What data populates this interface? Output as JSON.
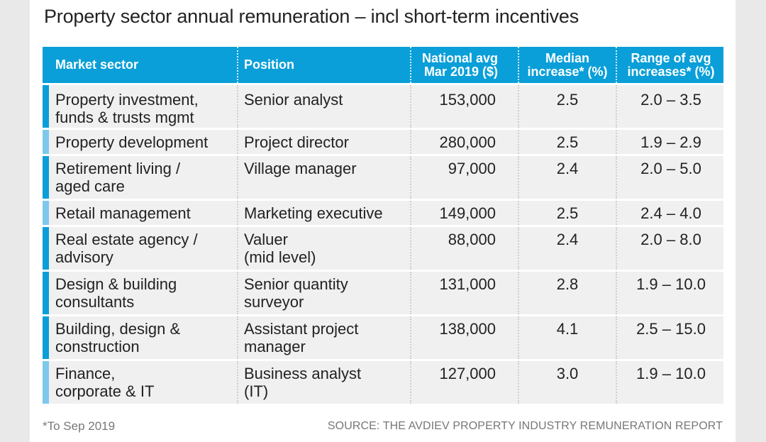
{
  "title": "Property sector annual remuneration – incl short-term incentives",
  "header": {
    "sector": "Market sector",
    "position": "Position",
    "avg_line1": "National avg",
    "avg_line2": "Mar 2019 ($)",
    "median_line1": "Median",
    "median_line2": "increase* (%)",
    "range_line1": "Range of avg",
    "range_line2": "increases* (%)"
  },
  "rows": [
    {
      "sector1": "Property investment,",
      "sector2": "funds & trusts mgmt",
      "pos1": "Senior analyst",
      "pos2": "",
      "avg": "153,000",
      "median": "2.5",
      "range": "2.0 – 3.5"
    },
    {
      "sector1": "Property development",
      "sector2": "",
      "pos1": "Project director",
      "pos2": "",
      "avg": "280,000",
      "median": "2.5",
      "range": "1.9 – 2.9"
    },
    {
      "sector1": "Retirement living /",
      "sector2": "aged care",
      "pos1": "Village manager",
      "pos2": "",
      "avg": "97,000",
      "median": "2.4",
      "range": "2.0 – 5.0"
    },
    {
      "sector1": "Retail management",
      "sector2": "",
      "pos1": "Marketing executive",
      "pos2": "",
      "avg": "149,000",
      "median": "2.5",
      "range": "2.4 – 4.0"
    },
    {
      "sector1": "Real estate agency /",
      "sector2": "advisory",
      "pos1": "Valuer",
      "pos2": "(mid level)",
      "avg": "88,000",
      "median": "2.4",
      "range": "2.0 – 8.0"
    },
    {
      "sector1": "Design & building",
      "sector2": "consultants",
      "pos1": "Senior quantity",
      "pos2": "surveyor",
      "avg": "131,000",
      "median": "2.8",
      "range": "1.9 – 10.0"
    },
    {
      "sector1": "Building, design &",
      "sector2": "construction",
      "pos1": "Assistant project",
      "pos2": "manager",
      "avg": "138,000",
      "median": "4.1",
      "range": "2.5 – 15.0"
    },
    {
      "sector1": "Finance,",
      "sector2": "corporate & IT",
      "pos1": "Business analyst",
      "pos2": "(IT)",
      "avg": "127,000",
      "median": "3.0",
      "range": "1.9 – 10.0"
    }
  ],
  "footnote": "*To Sep 2019",
  "source": "SOURCE: THE AVDIEV PROPERTY INDUSTRY REMUNERATION REPORT",
  "colors": {
    "header_bg": "#0a9fd8",
    "row_bg": "#f0f0f0",
    "accent_bar": "#0a9fd8",
    "accent_bar_light": "#7ec8ec"
  }
}
